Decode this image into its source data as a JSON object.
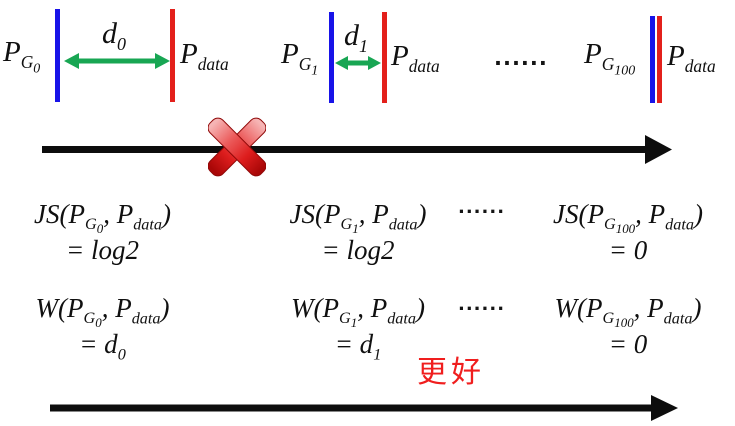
{
  "colors": {
    "generator_line_blue": "#1813e8",
    "data_line_red": "#e3201b",
    "distance_arrow_green": "#18a653",
    "axis_black": "#0d0d0d",
    "cross_red": "#d42020",
    "better_text_red": "#f01e1e"
  },
  "top": {
    "groups": [
      {
        "g_label": "P_{G_{0}}",
        "d_label": "d_{0}",
        "data_label": "P_{data}"
      },
      {
        "g_label": "P_{G_{1}}",
        "d_label": "d_{1}",
        "data_label": "P_{data}"
      },
      {
        "g_label": "P_{G_{100}}",
        "data_label": "P_{data}"
      }
    ],
    "dots": "......"
  },
  "js_row": {
    "cells": [
      {
        "expr": "JS(P_{G_{0}}, P_{data})",
        "value": "= log2"
      },
      {
        "expr": "JS(P_{G_{1}}, P_{data})",
        "value": "= log2"
      },
      {
        "expr": "JS(P_{G_{100}}, P_{data})",
        "value": "= 0"
      }
    ],
    "dots": "......"
  },
  "w_row": {
    "cells": [
      {
        "expr": "W(P_{G_{0}}, P_{data})",
        "value": "= d_{0}"
      },
      {
        "expr": "W(P_{G_{1}}, P_{data})",
        "value": "= d_{1}"
      },
      {
        "expr": "W(P_{G_{100}}, P_{data})",
        "value": "= 0"
      }
    ],
    "dots": "......"
  },
  "annotation": {
    "better": "更好"
  }
}
